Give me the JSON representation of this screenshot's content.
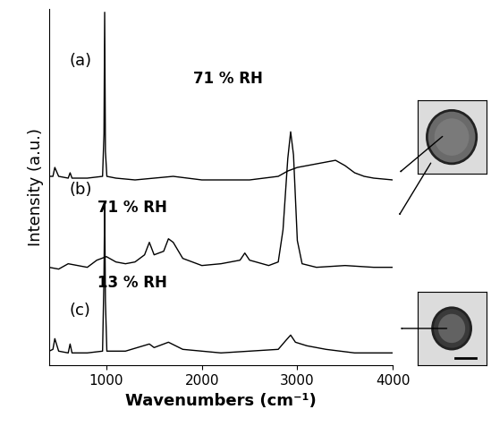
{
  "chart_data": {
    "type": "line",
    "x_label": "Wavenumbers (cm⁻¹)",
    "y_label": "Intensity (a.u.)",
    "xlim": [
      400,
      4000
    ],
    "xticks": [
      1000,
      2000,
      3000,
      4000
    ],
    "ylim": [
      0,
      10
    ],
    "yticks": [],
    "tick_labels": "x",
    "grid": false,
    "series": [
      {
        "label": "(a)",
        "annotation": "71 % RH",
        "color": "#000000",
        "x": [
          400,
          440,
          460,
          500,
          600,
          620,
          640,
          800,
          960,
          975,
          982,
          990,
          1005,
          1100,
          1300,
          1500,
          1700,
          2000,
          2500,
          2800,
          2900,
          3000,
          3100,
          3200,
          3300,
          3400,
          3500,
          3600,
          3700,
          3800,
          4000
        ],
        "values": [
          5.3,
          5.3,
          5.55,
          5.3,
          5.25,
          5.4,
          5.25,
          5.25,
          5.3,
          6.5,
          9.9,
          6.0,
          5.3,
          5.25,
          5.2,
          5.25,
          5.3,
          5.2,
          5.2,
          5.3,
          5.45,
          5.55,
          5.6,
          5.65,
          5.7,
          5.75,
          5.6,
          5.4,
          5.3,
          5.25,
          5.2
        ]
      },
      {
        "label": "(b)",
        "annotation": "71 % RH",
        "color": "#000000",
        "x": [
          400,
          500,
          600,
          800,
          900,
          1000,
          1100,
          1200,
          1300,
          1400,
          1450,
          1500,
          1600,
          1650,
          1700,
          1800,
          2000,
          2200,
          2400,
          2450,
          2500,
          2700,
          2800,
          2850,
          2900,
          2930,
          2960,
          3000,
          3050,
          3200,
          3500,
          3800,
          4000
        ],
        "values": [
          2.75,
          2.7,
          2.85,
          2.75,
          2.95,
          3.05,
          2.9,
          2.85,
          2.9,
          3.1,
          3.45,
          3.1,
          3.2,
          3.55,
          3.45,
          3.0,
          2.8,
          2.85,
          2.95,
          3.15,
          2.95,
          2.8,
          2.9,
          3.8,
          5.8,
          6.55,
          5.9,
          3.5,
          2.85,
          2.75,
          2.8,
          2.75,
          2.75
        ]
      },
      {
        "label": "(c)",
        "annotation": "13 % RH",
        "color": "#000000",
        "x": [
          400,
          440,
          460,
          500,
          600,
          620,
          640,
          800,
          960,
          975,
          982,
          990,
          1005,
          1200,
          1450,
          1500,
          1650,
          1800,
          2200,
          2800,
          2880,
          2930,
          2980,
          3100,
          3300,
          3600,
          4000
        ],
        "values": [
          0.4,
          0.45,
          0.75,
          0.4,
          0.35,
          0.6,
          0.35,
          0.35,
          0.4,
          2.5,
          4.6,
          1.8,
          0.4,
          0.4,
          0.6,
          0.5,
          0.65,
          0.45,
          0.35,
          0.45,
          0.7,
          0.85,
          0.65,
          0.55,
          0.45,
          0.35,
          0.35
        ]
      }
    ]
  }
}
